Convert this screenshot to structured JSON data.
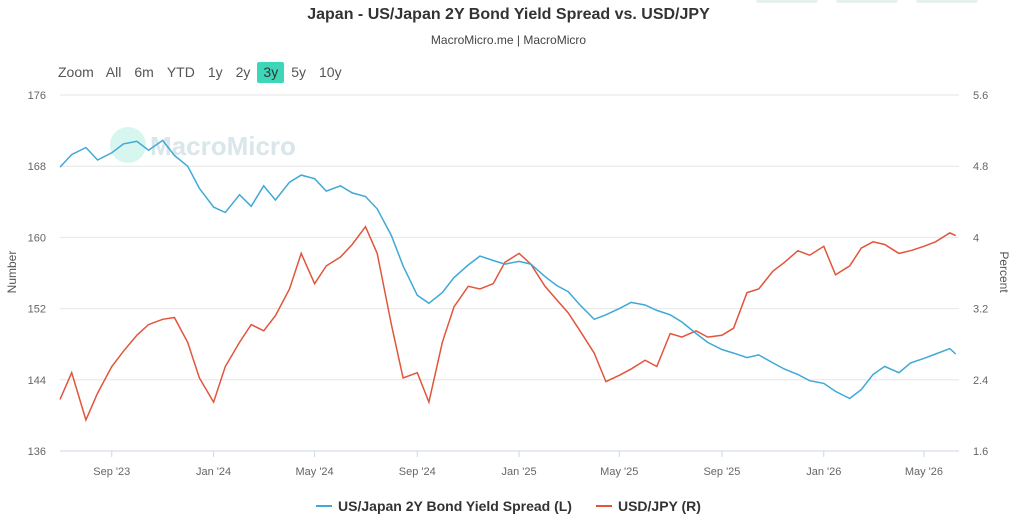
{
  "header": {
    "title": "Japan - US/Japan 2Y Bond Yield Spread vs. USD/JPY",
    "subtitle": "MacroMicro.me | MacroMicro"
  },
  "zoom": {
    "label": "Zoom",
    "options": [
      "All",
      "6m",
      "YTD",
      "1y",
      "2y",
      "3y",
      "5y",
      "10y"
    ],
    "active": "3y"
  },
  "watermark": "MacroMicro",
  "colors": {
    "spread": "#3ea9d6",
    "usdjpy": "#e0553b",
    "active_zoom": "#3ed6b8"
  },
  "chart_data": {
    "type": "line",
    "title": "Japan - US/Japan 2Y Bond Yield Spread vs. USD/JPY",
    "subtitle": "MacroMicro.me | MacroMicro",
    "x_range": [
      "2023-07",
      "2026-06"
    ],
    "x_tick_labels": [
      "Sep '23",
      "Jan '24",
      "May '24",
      "Sep '24",
      "Jan '25",
      "May '25",
      "Sep '25",
      "Jan '26",
      "May '26"
    ],
    "left_axis": {
      "label": "Number",
      "range": [
        136,
        176
      ],
      "ticks": [
        "136",
        "144",
        "152",
        "160",
        "168",
        "176"
      ]
    },
    "right_axis": {
      "label": "Percent",
      "range": [
        1.6,
        5.6
      ],
      "ticks": [
        "1.6",
        "2.4",
        "3.2",
        "4",
        "4.8",
        "5.6"
      ]
    },
    "grid": true,
    "legend_position": "bottom",
    "series": [
      {
        "name": "US/Japan 2Y Bond Yield Spread (L)",
        "axis": "left",
        "values": [
          [
            "2023-07-01",
            167.9
          ],
          [
            "2023-07-15",
            169.3
          ],
          [
            "2023-08-01",
            170.1
          ],
          [
            "2023-08-15",
            168.7
          ],
          [
            "2023-09-01",
            169.5
          ],
          [
            "2023-09-15",
            170.5
          ],
          [
            "2023-10-01",
            170.8
          ],
          [
            "2023-10-15",
            169.8
          ],
          [
            "2023-11-01",
            170.9
          ],
          [
            "2023-11-15",
            169.2
          ],
          [
            "2023-12-01",
            168.0
          ],
          [
            "2023-12-15",
            165.5
          ],
          [
            "2024-01-01",
            163.4
          ],
          [
            "2024-01-15",
            162.8
          ],
          [
            "2024-02-01",
            164.8
          ],
          [
            "2024-02-15",
            163.5
          ],
          [
            "2024-03-01",
            165.8
          ],
          [
            "2024-03-15",
            164.2
          ],
          [
            "2024-04-01",
            166.2
          ],
          [
            "2024-04-15",
            167.0
          ],
          [
            "2024-05-01",
            166.6
          ],
          [
            "2024-05-15",
            165.2
          ],
          [
            "2024-06-01",
            165.8
          ],
          [
            "2024-06-15",
            165.0
          ],
          [
            "2024-07-01",
            164.6
          ],
          [
            "2024-07-15",
            163.2
          ],
          [
            "2024-08-01",
            160.2
          ],
          [
            "2024-08-15",
            156.8
          ],
          [
            "2024-09-01",
            153.5
          ],
          [
            "2024-09-15",
            152.6
          ],
          [
            "2024-10-01",
            153.8
          ],
          [
            "2024-10-15",
            155.5
          ],
          [
            "2024-11-01",
            156.9
          ],
          [
            "2024-11-15",
            157.9
          ],
          [
            "2024-12-01",
            157.4
          ],
          [
            "2024-12-15",
            157.0
          ],
          [
            "2025-01-01",
            157.3
          ],
          [
            "2025-01-15",
            157.0
          ],
          [
            "2025-02-01",
            155.6
          ],
          [
            "2025-02-15",
            154.6
          ],
          [
            "2025-03-01",
            153.9
          ],
          [
            "2025-03-15",
            152.4
          ],
          [
            "2025-04-01",
            150.8
          ],
          [
            "2025-04-15",
            151.3
          ],
          [
            "2025-05-01",
            152.0
          ],
          [
            "2025-05-15",
            152.7
          ],
          [
            "2025-06-01",
            152.4
          ],
          [
            "2025-06-15",
            151.8
          ],
          [
            "2025-07-01",
            151.3
          ],
          [
            "2025-07-15",
            150.5
          ],
          [
            "2025-08-01",
            149.2
          ],
          [
            "2025-08-15",
            148.2
          ],
          [
            "2025-09-01",
            147.4
          ],
          [
            "2025-09-15",
            147.0
          ],
          [
            "2025-10-01",
            146.5
          ],
          [
            "2025-10-15",
            146.8
          ],
          [
            "2025-11-01",
            145.9
          ],
          [
            "2025-11-15",
            145.2
          ],
          [
            "2025-12-01",
            144.6
          ],
          [
            "2025-12-15",
            143.9
          ],
          [
            "2026-01-01",
            143.6
          ],
          [
            "2026-01-15",
            142.7
          ],
          [
            "2026-02-01",
            141.9
          ],
          [
            "2026-02-15",
            142.9
          ],
          [
            "2026-03-01",
            144.6
          ],
          [
            "2026-03-15",
            145.5
          ],
          [
            "2026-04-01",
            144.8
          ],
          [
            "2026-04-15",
            145.9
          ],
          [
            "2026-05-01",
            146.4
          ],
          [
            "2026-05-15",
            146.9
          ],
          [
            "2026-06-01",
            147.5
          ],
          [
            "2026-06-08",
            146.9
          ]
        ]
      },
      {
        "name": "USD/JPY (R)",
        "axis": "right",
        "values": [
          [
            "2023-07-01",
            2.18
          ],
          [
            "2023-07-15",
            2.48
          ],
          [
            "2023-08-01",
            1.95
          ],
          [
            "2023-08-15",
            2.25
          ],
          [
            "2023-09-01",
            2.55
          ],
          [
            "2023-09-15",
            2.72
          ],
          [
            "2023-10-01",
            2.9
          ],
          [
            "2023-10-15",
            3.02
          ],
          [
            "2023-11-01",
            3.08
          ],
          [
            "2023-11-15",
            3.1
          ],
          [
            "2023-12-01",
            2.82
          ],
          [
            "2023-12-15",
            2.42
          ],
          [
            "2024-01-01",
            2.15
          ],
          [
            "2024-01-15",
            2.55
          ],
          [
            "2024-02-01",
            2.82
          ],
          [
            "2024-02-15",
            3.02
          ],
          [
            "2024-03-01",
            2.95
          ],
          [
            "2024-03-15",
            3.12
          ],
          [
            "2024-04-01",
            3.42
          ],
          [
            "2024-04-15",
            3.82
          ],
          [
            "2024-05-01",
            3.48
          ],
          [
            "2024-05-15",
            3.68
          ],
          [
            "2024-06-01",
            3.78
          ],
          [
            "2024-06-15",
            3.92
          ],
          [
            "2024-07-01",
            4.12
          ],
          [
            "2024-07-15",
            3.82
          ],
          [
            "2024-08-01",
            3.02
          ],
          [
            "2024-08-15",
            2.42
          ],
          [
            "2024-09-01",
            2.48
          ],
          [
            "2024-09-15",
            2.15
          ],
          [
            "2024-10-01",
            2.82
          ],
          [
            "2024-10-15",
            3.22
          ],
          [
            "2024-11-01",
            3.45
          ],
          [
            "2024-11-15",
            3.42
          ],
          [
            "2024-12-01",
            3.48
          ],
          [
            "2024-12-15",
            3.72
          ],
          [
            "2025-01-01",
            3.82
          ],
          [
            "2025-01-15",
            3.7
          ],
          [
            "2025-02-01",
            3.45
          ],
          [
            "2025-02-15",
            3.3
          ],
          [
            "2025-03-01",
            3.15
          ],
          [
            "2025-03-15",
            2.95
          ],
          [
            "2025-04-01",
            2.7
          ],
          [
            "2025-04-15",
            2.38
          ],
          [
            "2025-05-01",
            2.45
          ],
          [
            "2025-05-15",
            2.52
          ],
          [
            "2025-06-01",
            2.62
          ],
          [
            "2025-06-15",
            2.55
          ],
          [
            "2025-07-01",
            2.92
          ],
          [
            "2025-07-15",
            2.88
          ],
          [
            "2025-08-01",
            2.95
          ],
          [
            "2025-08-15",
            2.88
          ],
          [
            "2025-09-01",
            2.9
          ],
          [
            "2025-09-15",
            2.98
          ],
          [
            "2025-10-01",
            3.38
          ],
          [
            "2025-10-15",
            3.42
          ],
          [
            "2025-11-01",
            3.62
          ],
          [
            "2025-11-15",
            3.72
          ],
          [
            "2025-12-01",
            3.85
          ],
          [
            "2025-12-15",
            3.8
          ],
          [
            "2026-01-01",
            3.9
          ],
          [
            "2026-01-15",
            3.58
          ],
          [
            "2026-02-01",
            3.68
          ],
          [
            "2026-02-15",
            3.88
          ],
          [
            "2026-03-01",
            3.95
          ],
          [
            "2026-03-15",
            3.92
          ],
          [
            "2026-04-01",
            3.82
          ],
          [
            "2026-04-15",
            3.85
          ],
          [
            "2026-05-01",
            3.9
          ],
          [
            "2026-05-15",
            3.95
          ],
          [
            "2026-06-01",
            4.05
          ],
          [
            "2026-06-08",
            4.02
          ]
        ]
      }
    ]
  }
}
